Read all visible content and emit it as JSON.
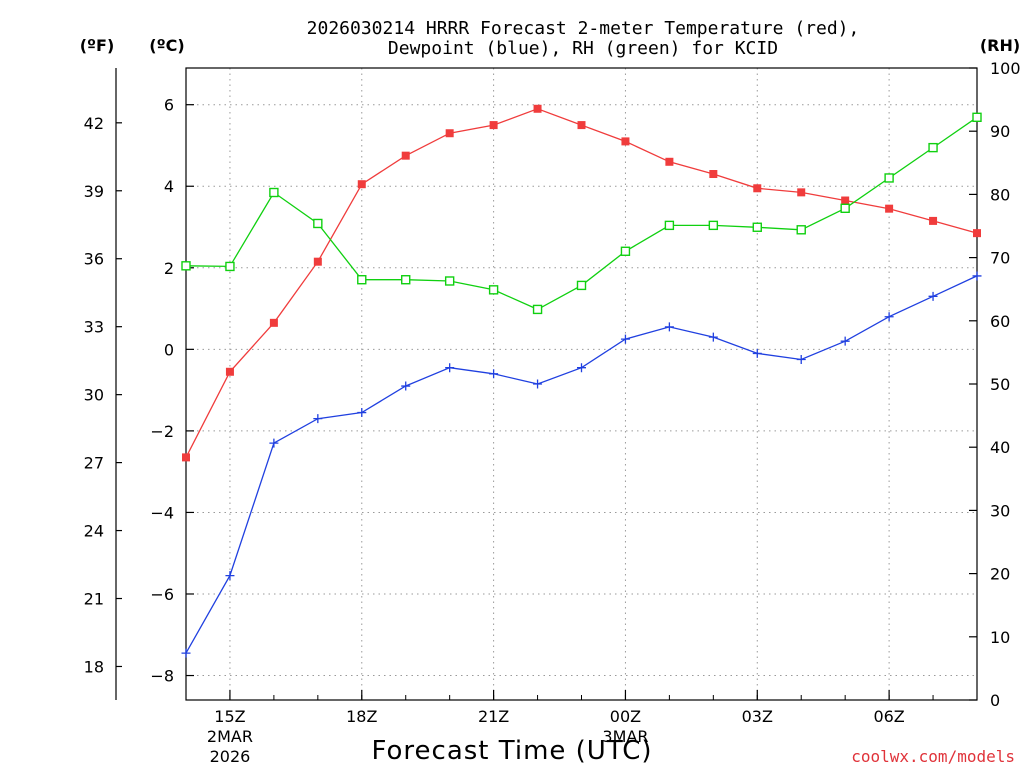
{
  "colors": {
    "temperature": "#f03c3c",
    "dewpoint": "#2040e0",
    "rh": "#10d010",
    "credit": "#e0333a"
  },
  "chart_data": {
    "type": "line",
    "title_line1": "2026030214 HRRR Forecast 2-meter Temperature (red),",
    "title_line2": "Dewpoint (blue), RH (green) for KCID",
    "xlabel": "Forecast Time (UTC)",
    "credit": "coolwx.com/models",
    "axis_units": {
      "fahrenheit": "(ºF)",
      "celsius": "(ºC)",
      "rh": "(RH)"
    },
    "x_hours": [
      14,
      15,
      16,
      17,
      18,
      19,
      20,
      21,
      22,
      23,
      24,
      25,
      26,
      27,
      28,
      29,
      30,
      31,
      32
    ],
    "xlim": [
      14,
      32
    ],
    "x_ticks": [
      {
        "hour": 15,
        "label": "15Z",
        "sub1": "2MAR",
        "sub2": "2026"
      },
      {
        "hour": 18,
        "label": "18Z",
        "sub1": "",
        "sub2": ""
      },
      {
        "hour": 21,
        "label": "21Z",
        "sub1": "",
        "sub2": ""
      },
      {
        "hour": 24,
        "label": "00Z",
        "sub1": "3MAR",
        "sub2": ""
      },
      {
        "hour": 27,
        "label": "03Z",
        "sub1": "",
        "sub2": ""
      },
      {
        "hour": 30,
        "label": "06Z",
        "sub1": "",
        "sub2": ""
      }
    ],
    "celsius_ylim": [
      -8.6,
      6.9
    ],
    "celsius_ticks": [
      {
        "value": 6,
        "label": "6"
      },
      {
        "value": 4,
        "label": "4"
      },
      {
        "value": 2,
        "label": "2"
      },
      {
        "value": 0,
        "label": "0"
      },
      {
        "value": -2,
        "label": "−2"
      },
      {
        "value": -4,
        "label": "−4"
      },
      {
        "value": -6,
        "label": "−6"
      },
      {
        "value": -8,
        "label": "−8"
      }
    ],
    "fahrenheit_ticks": [
      {
        "value": 42,
        "label": "42"
      },
      {
        "value": 39,
        "label": "39"
      },
      {
        "value": 36,
        "label": "36"
      },
      {
        "value": 33,
        "label": "33"
      },
      {
        "value": 30,
        "label": "30"
      },
      {
        "value": 27,
        "label": "27"
      },
      {
        "value": 24,
        "label": "24"
      },
      {
        "value": 21,
        "label": "21"
      },
      {
        "value": 18,
        "label": "18"
      }
    ],
    "rh_ylim": [
      0,
      100
    ],
    "rh_ticks": [
      {
        "value": 100,
        "label": "100"
      },
      {
        "value": 90,
        "label": "90"
      },
      {
        "value": 80,
        "label": "80"
      },
      {
        "value": 70,
        "label": "70"
      },
      {
        "value": 60,
        "label": "60"
      },
      {
        "value": 50,
        "label": "50"
      },
      {
        "value": 40,
        "label": "40"
      },
      {
        "value": 30,
        "label": "30"
      },
      {
        "value": 20,
        "label": "20"
      },
      {
        "value": 10,
        "label": "10"
      },
      {
        "value": 0,
        "label": "0"
      }
    ],
    "series": [
      {
        "name": "temperature",
        "unit": "C",
        "marker": "filled-square",
        "values": [
          -2.65,
          -0.55,
          0.65,
          2.15,
          4.05,
          4.75,
          5.3,
          5.5,
          5.9,
          5.5,
          5.1,
          4.6,
          4.3,
          3.95,
          3.85,
          3.65,
          3.45,
          3.15,
          2.85
        ]
      },
      {
        "name": "dewpoint",
        "unit": "C",
        "marker": "plus",
        "values": [
          -7.45,
          -5.55,
          -2.3,
          -1.7,
          -1.55,
          -0.9,
          -0.45,
          -0.6,
          -0.85,
          -0.45,
          0.25,
          0.55,
          0.3,
          -0.1,
          -0.25,
          0.2,
          0.8,
          1.3,
          1.8
        ]
      },
      {
        "name": "rh",
        "unit": "%",
        "marker": "open-square",
        "values": [
          68.7,
          68.6,
          80.3,
          75.4,
          66.5,
          66.5,
          66.3,
          64.9,
          61.8,
          65.6,
          71.0,
          75.1,
          75.1,
          74.8,
          74.4,
          77.8,
          82.6,
          87.4,
          92.2
        ]
      }
    ]
  }
}
